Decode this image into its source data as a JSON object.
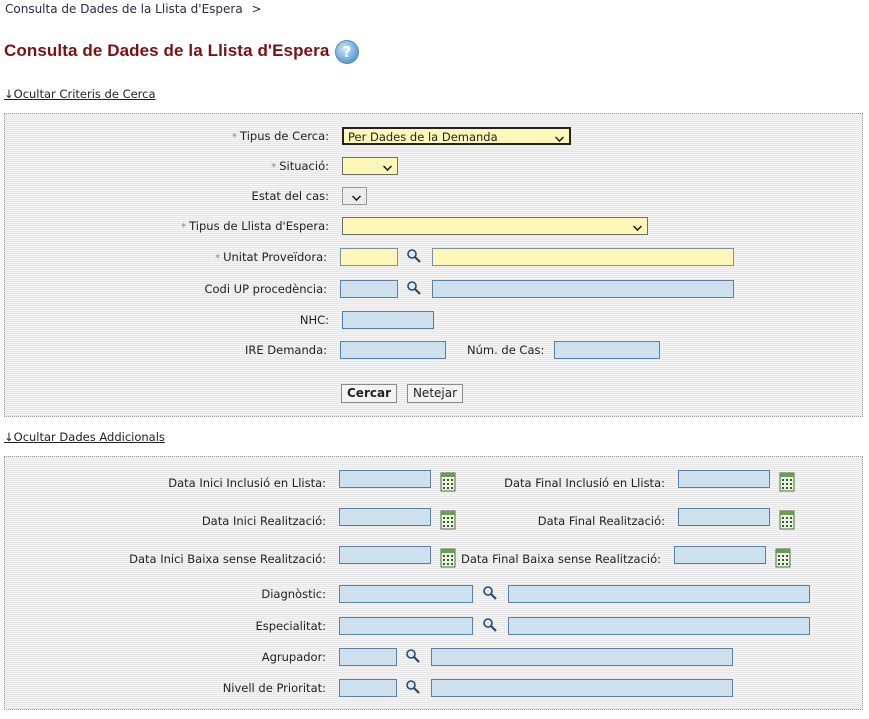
{
  "breadcrumb": {
    "text": "Consulta de Dades de la Llista d'Espera",
    "separator": ">"
  },
  "title": "Consulta de Dades de la Llista d'Espera",
  "help_icon": "help-icon",
  "toggle_search": "↓Ocultar Criteris de Cerca",
  "toggle_additional": "↓Ocultar Dades Addicionals",
  "required_mark": "*",
  "search": {
    "tipus_cerca": {
      "label": "Tipus de Cerca:",
      "value": "Per Dades de la Demanda"
    },
    "situacio": {
      "label": "Situació:",
      "value": ""
    },
    "estat_cas": {
      "label": "Estat del cas:",
      "value": ""
    },
    "tipus_llista": {
      "label": "Tipus de Llista d'Espera:",
      "value": ""
    },
    "unitat_proveidora": {
      "label": "Unitat Proveïdora:",
      "code": "",
      "desc": ""
    },
    "codi_up": {
      "label": "Codi UP procedència:",
      "code": "",
      "desc": ""
    },
    "nhc": {
      "label": "NHC:",
      "value": ""
    },
    "ire_demanda": {
      "label": "IRE Demanda:",
      "value": ""
    },
    "num_cas": {
      "label": "Núm. de Cas:",
      "value": ""
    },
    "buttons": {
      "search": "Cercar",
      "clear": "Netejar"
    }
  },
  "additional": {
    "data_inici_inclusio": "Data Inici Inclusió en Llista:",
    "data_final_inclusio": "Data Final Inclusió en Llista:",
    "data_inici_realitzacio": "Data Inici Realització:",
    "data_final_realitzacio": "Data Final Realització:",
    "data_inici_baixa": "Data Inici Baixa sense Realització:",
    "data_final_baixa": "Data Final Baixa sense Realització:",
    "diagnostic": "Diagnòstic:",
    "especialitat": "Especialitat:",
    "agrupador": "Agrupador:",
    "nivell_prioritat": "Nivell de Prioritat:"
  },
  "colors": {
    "title": "#7a1212",
    "required_field": "#fdf8b8",
    "optional_field": "#cde0ee"
  }
}
